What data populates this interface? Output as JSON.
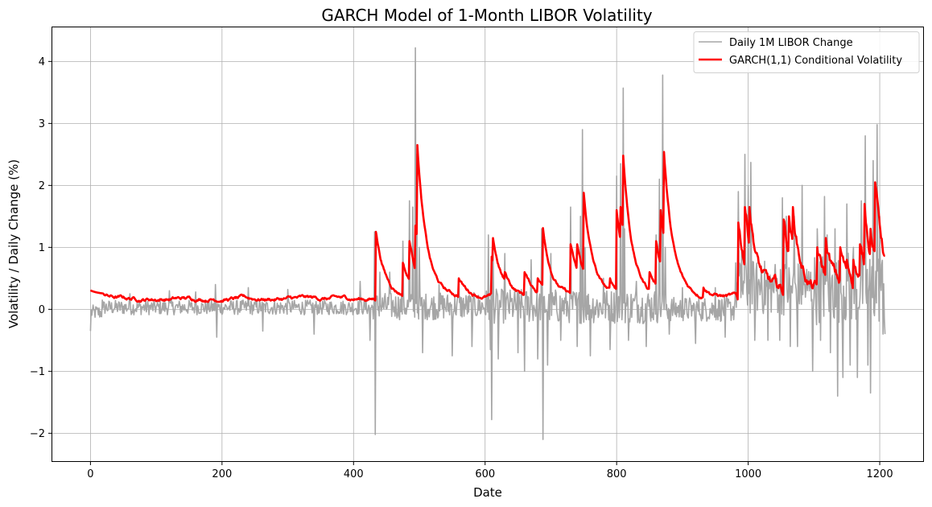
{
  "chart_data": {
    "type": "line",
    "title": "GARCH Model of 1-Month LIBOR Volatility",
    "xlabel": "Date",
    "ylabel": "Volatility / Daily Change (%)",
    "xlim": [
      -58,
      1266
    ],
    "ylim": [
      -2.45,
      4.55
    ],
    "xticks": [
      0,
      200,
      400,
      600,
      800,
      1000,
      1200
    ],
    "yticks": [
      -2,
      -1,
      0,
      1,
      2,
      3,
      4
    ],
    "ytick_labels": [
      "−2",
      "−1",
      "0",
      "1",
      "2",
      "3",
      "4"
    ],
    "grid": true,
    "legend_position": "upper-right",
    "n_points": 1209,
    "series": [
      {
        "name": "Daily 1M LIBOR Change",
        "color": "#a6a6a6",
        "opacity": 1,
        "line_width": 1.6,
        "spikes": [
          [
            0,
            -0.35
          ],
          [
            18,
            0.15
          ],
          [
            60,
            0.25
          ],
          [
            120,
            0.3
          ],
          [
            160,
            0.28
          ],
          [
            190,
            0.4
          ],
          [
            192,
            -0.45
          ],
          [
            240,
            0.35
          ],
          [
            262,
            -0.35
          ],
          [
            300,
            0.32
          ],
          [
            340,
            -0.4
          ],
          [
            410,
            0.45
          ],
          [
            425,
            -0.5
          ],
          [
            432,
            1.25
          ],
          [
            433,
            -2.02
          ],
          [
            440,
            0.6
          ],
          [
            455,
            0.6
          ],
          [
            475,
            1.1
          ],
          [
            485,
            1.75
          ],
          [
            490,
            1.65
          ],
          [
            494,
            4.22
          ],
          [
            496,
            2.5
          ],
          [
            500,
            1.0
          ],
          [
            505,
            -0.7
          ],
          [
            530,
            0.4
          ],
          [
            550,
            -0.75
          ],
          [
            560,
            0.5
          ],
          [
            580,
            -0.6
          ],
          [
            605,
            1.2
          ],
          [
            608,
            -0.65
          ],
          [
            610,
            -1.78
          ],
          [
            612,
            1.1
          ],
          [
            620,
            -0.8
          ],
          [
            630,
            0.9
          ],
          [
            650,
            -0.7
          ],
          [
            660,
            -1.0
          ],
          [
            670,
            0.8
          ],
          [
            680,
            -0.8
          ],
          [
            686,
            1.3
          ],
          [
            688,
            -2.1
          ],
          [
            695,
            -0.9
          ],
          [
            700,
            0.9
          ],
          [
            715,
            -0.5
          ],
          [
            730,
            1.65
          ],
          [
            740,
            -0.6
          ],
          [
            745,
            1.5
          ],
          [
            748,
            2.9
          ],
          [
            752,
            1.0
          ],
          [
            760,
            -0.75
          ],
          [
            780,
            0.5
          ],
          [
            790,
            -0.65
          ],
          [
            800,
            2.15
          ],
          [
            806,
            2.35
          ],
          [
            810,
            3.57
          ],
          [
            812,
            1.3
          ],
          [
            818,
            -0.5
          ],
          [
            830,
            0.45
          ],
          [
            845,
            -0.6
          ],
          [
            860,
            1.2
          ],
          [
            865,
            2.1
          ],
          [
            870,
            3.78
          ],
          [
            874,
            1.0
          ],
          [
            880,
            -0.4
          ],
          [
            900,
            0.35
          ],
          [
            920,
            -0.55
          ],
          [
            950,
            0.35
          ],
          [
            965,
            -0.45
          ],
          [
            985,
            1.9
          ],
          [
            990,
            1.0
          ],
          [
            995,
            2.5
          ],
          [
            1000,
            2.0
          ],
          [
            1004,
            2.37
          ],
          [
            1010,
            -0.5
          ],
          [
            1020,
            0.7
          ],
          [
            1030,
            -0.5
          ],
          [
            1040,
            0.5
          ],
          [
            1048,
            -0.5
          ],
          [
            1052,
            1.8
          ],
          [
            1058,
            1.5
          ],
          [
            1064,
            -0.6
          ],
          [
            1070,
            1.5
          ],
          [
            1075,
            -0.6
          ],
          [
            1082,
            2.0
          ],
          [
            1090,
            0.3
          ],
          [
            1098,
            -1.0
          ],
          [
            1105,
            1.3
          ],
          [
            1110,
            -0.5
          ],
          [
            1116,
            1.82
          ],
          [
            1120,
            1.2
          ],
          [
            1125,
            -0.7
          ],
          [
            1132,
            1.3
          ],
          [
            1136,
            -1.4
          ],
          [
            1140,
            1.0
          ],
          [
            1144,
            -1.1
          ],
          [
            1150,
            1.7
          ],
          [
            1155,
            -0.9
          ],
          [
            1160,
            1.0
          ],
          [
            1166,
            -1.1
          ],
          [
            1172,
            1.75
          ],
          [
            1178,
            2.8
          ],
          [
            1182,
            -0.9
          ],
          [
            1186,
            -1.35
          ],
          [
            1190,
            2.4
          ],
          [
            1196,
            2.98
          ],
          [
            1200,
            1.5
          ],
          [
            1205,
            -0.4
          ],
          [
            1208,
            -0.4
          ]
        ]
      },
      {
        "name": "GARCH(1,1) Conditional Volatility",
        "color": "#ff0000",
        "opacity": 1,
        "line_width": 2.6,
        "shocks": [
          [
            434,
            1.25
          ],
          [
            475,
            0.75
          ],
          [
            485,
            1.1
          ],
          [
            494,
            1.35
          ],
          [
            497,
            2.65
          ],
          [
            560,
            0.5
          ],
          [
            610,
            0.85
          ],
          [
            612,
            1.15
          ],
          [
            630,
            0.6
          ],
          [
            660,
            0.6
          ],
          [
            680,
            0.5
          ],
          [
            688,
            1.31
          ],
          [
            730,
            1.05
          ],
          [
            740,
            1.05
          ],
          [
            750,
            1.88
          ],
          [
            790,
            0.5
          ],
          [
            800,
            1.6
          ],
          [
            806,
            1.65
          ],
          [
            810,
            2.48
          ],
          [
            850,
            0.6
          ],
          [
            860,
            1.1
          ],
          [
            867,
            1.6
          ],
          [
            872,
            2.54
          ],
          [
            900,
            0.32
          ],
          [
            932,
            0.35
          ],
          [
            985,
            1.4
          ],
          [
            995,
            1.65
          ],
          [
            1002,
            1.65
          ],
          [
            1010,
            0.9
          ],
          [
            1030,
            0.4
          ],
          [
            1054,
            1.45
          ],
          [
            1062,
            1.5
          ],
          [
            1068,
            1.65
          ],
          [
            1082,
            0.6
          ],
          [
            1105,
            1.0
          ],
          [
            1118,
            1.15
          ],
          [
            1140,
            1.0
          ],
          [
            1150,
            0.8
          ],
          [
            1160,
            0.8
          ],
          [
            1170,
            1.05
          ],
          [
            1177,
            1.7
          ],
          [
            1186,
            1.3
          ],
          [
            1193,
            2.05
          ],
          [
            1200,
            1.25
          ]
        ]
      }
    ]
  }
}
